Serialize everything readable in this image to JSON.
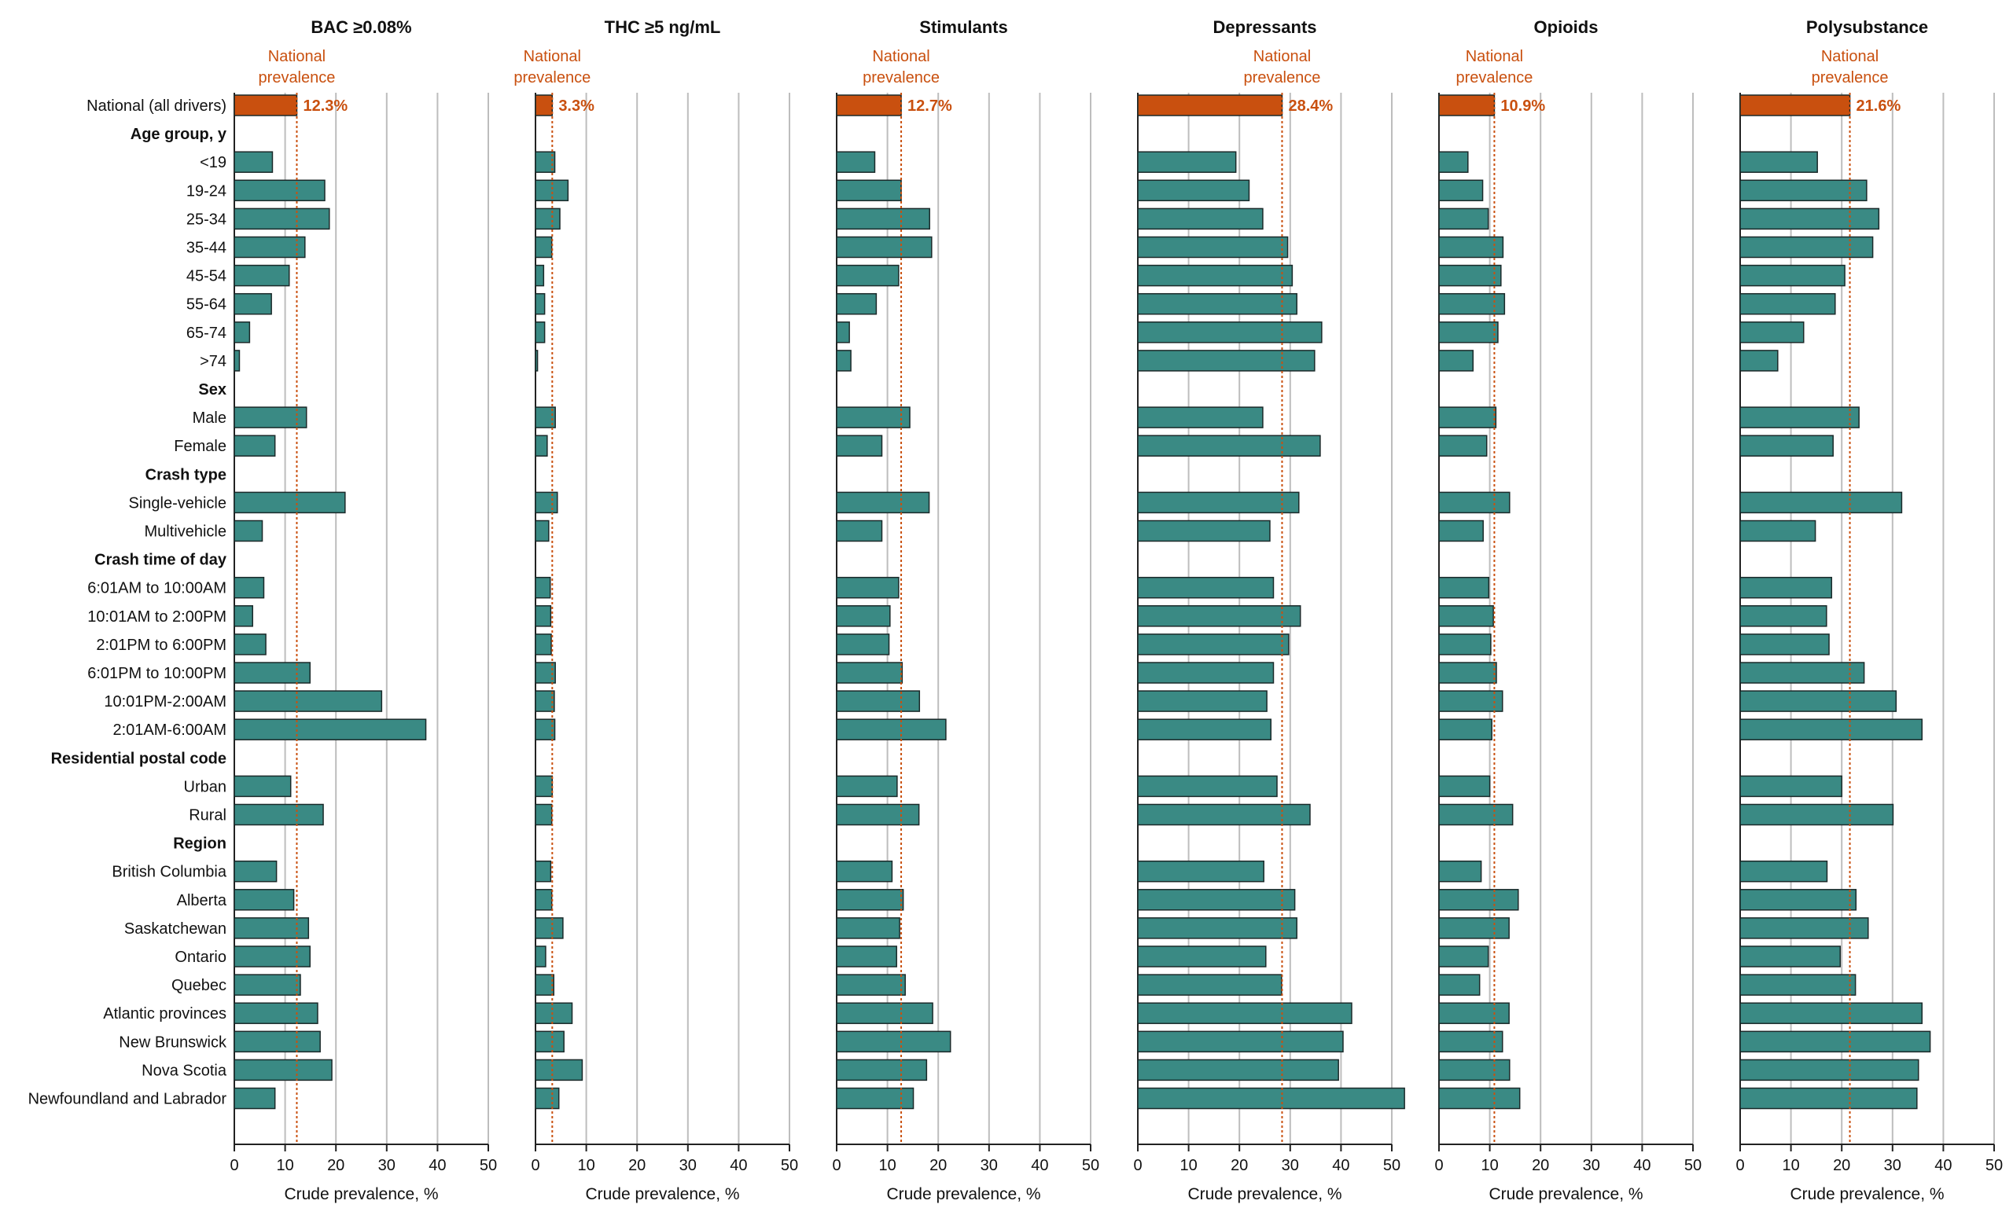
{
  "chart_data": {
    "type": "bar",
    "orientation": "horizontal",
    "xlabel": "Crude prevalence, %",
    "xlim": [
      0,
      50
    ],
    "xticks": [
      0,
      10,
      20,
      30,
      40,
      50
    ],
    "national_line_label": [
      "National",
      "prevalence"
    ],
    "colors": {
      "national_bar": "#c9500f",
      "bar": "#3a8a84",
      "bar_outline": "#1b2a2a",
      "national_text": "#c9500f",
      "grid": "#bdbdbd"
    },
    "rows": [
      {
        "label": "National (all drivers)",
        "kind": "national"
      },
      {
        "label": "Age group, y",
        "kind": "header"
      },
      {
        "label": "<19",
        "kind": "item"
      },
      {
        "label": "19-24",
        "kind": "item"
      },
      {
        "label": "25-34",
        "kind": "item"
      },
      {
        "label": "35-44",
        "kind": "item"
      },
      {
        "label": "45-54",
        "kind": "item"
      },
      {
        "label": "55-64",
        "kind": "item"
      },
      {
        "label": "65-74",
        "kind": "item"
      },
      {
        "label": ">74",
        "kind": "item"
      },
      {
        "label": "Sex",
        "kind": "header"
      },
      {
        "label": "Male",
        "kind": "item"
      },
      {
        "label": "Female",
        "kind": "item"
      },
      {
        "label": "Crash type",
        "kind": "header"
      },
      {
        "label": "Single-vehicle",
        "kind": "item"
      },
      {
        "label": "Multivehicle",
        "kind": "item"
      },
      {
        "label": "Crash time of day",
        "kind": "header"
      },
      {
        "label": "6:01AM to 10:00AM",
        "kind": "item"
      },
      {
        "label": "10:01AM to 2:00PM",
        "kind": "item"
      },
      {
        "label": "2:01PM to 6:00PM",
        "kind": "item"
      },
      {
        "label": "6:01PM to 10:00PM",
        "kind": "item"
      },
      {
        "label": "10:01PM-2:00AM",
        "kind": "item"
      },
      {
        "label": "2:01AM-6:00AM",
        "kind": "item"
      },
      {
        "label": "Residential postal code",
        "kind": "header"
      },
      {
        "label": "Urban",
        "kind": "item"
      },
      {
        "label": "Rural",
        "kind": "item"
      },
      {
        "label": "Region",
        "kind": "header"
      },
      {
        "label": "British Columbia",
        "kind": "item"
      },
      {
        "label": "Alberta",
        "kind": "item"
      },
      {
        "label": "Saskatchewan",
        "kind": "item"
      },
      {
        "label": "Ontario",
        "kind": "item"
      },
      {
        "label": "Quebec",
        "kind": "item"
      },
      {
        "label": "Atlantic provinces",
        "kind": "item"
      },
      {
        "label": "New Brunswick",
        "kind": "item"
      },
      {
        "label": "Nova Scotia",
        "kind": "item"
      },
      {
        "label": "Newfoundland and Labrador",
        "kind": "item"
      }
    ],
    "panels": [
      {
        "title": "BAC ≥0.08%",
        "national": 12.3,
        "national_label": "12.3%",
        "values": [
          12.3,
          null,
          7.5,
          17.8,
          18.7,
          13.9,
          10.8,
          7.3,
          3.0,
          1.0,
          null,
          14.2,
          8.0,
          null,
          21.8,
          5.5,
          null,
          5.8,
          3.6,
          6.2,
          14.9,
          29.0,
          37.7,
          null,
          11.1,
          17.5,
          null,
          8.3,
          11.7,
          14.6,
          14.9,
          13.0,
          16.4,
          16.9,
          19.2,
          8.0
        ]
      },
      {
        "title": "THC ≥5  ng/mL",
        "national": 3.3,
        "national_label": "3.3%",
        "values": [
          3.3,
          null,
          3.8,
          6.4,
          4.8,
          3.2,
          1.6,
          1.8,
          1.8,
          0.4,
          null,
          3.9,
          2.3,
          null,
          4.3,
          2.6,
          null,
          2.9,
          3.0,
          3.1,
          3.9,
          3.7,
          3.8,
          null,
          3.3,
          3.2,
          null,
          3.0,
          3.2,
          5.4,
          2.0,
          3.6,
          7.2,
          5.6,
          9.2,
          4.6
        ]
      },
      {
        "title": "Stimulants",
        "national": 12.7,
        "national_label": "12.7%",
        "values": [
          12.7,
          null,
          7.5,
          12.7,
          18.3,
          18.7,
          12.2,
          7.8,
          2.5,
          2.8,
          null,
          14.4,
          8.9,
          null,
          18.2,
          8.9,
          null,
          12.2,
          10.5,
          10.3,
          12.9,
          16.3,
          21.5,
          null,
          11.9,
          16.2,
          null,
          10.9,
          13.1,
          12.4,
          11.8,
          13.5,
          18.9,
          22.4,
          17.7,
          15.1
        ]
      },
      {
        "title": "Depressants",
        "national": 28.4,
        "national_label": "28.4%",
        "values": [
          28.4,
          null,
          19.3,
          21.9,
          24.6,
          29.5,
          30.4,
          31.3,
          36.2,
          34.8,
          null,
          24.6,
          35.9,
          null,
          31.7,
          26.0,
          null,
          26.7,
          32.0,
          29.7,
          26.7,
          25.4,
          26.2,
          null,
          27.4,
          33.9,
          null,
          24.8,
          30.9,
          31.3,
          25.2,
          28.3,
          42.1,
          40.4,
          39.5,
          52.5
        ]
      },
      {
        "title": "Opioids",
        "national": 10.9,
        "national_label": "10.9%",
        "values": [
          10.9,
          null,
          5.7,
          8.6,
          9.7,
          12.6,
          12.2,
          12.9,
          11.6,
          6.7,
          null,
          11.2,
          9.4,
          null,
          13.9,
          8.7,
          null,
          9.8,
          10.7,
          10.2,
          11.3,
          12.5,
          10.4,
          null,
          10.0,
          14.5,
          null,
          8.3,
          15.6,
          13.8,
          9.7,
          8.0,
          13.8,
          12.5,
          13.9,
          15.9
        ]
      },
      {
        "title": "Polysubstance",
        "national": 21.6,
        "national_label": "21.6%",
        "values": [
          21.6,
          null,
          15.2,
          24.9,
          27.3,
          26.1,
          20.6,
          18.7,
          12.5,
          7.4,
          null,
          23.4,
          18.3,
          null,
          31.8,
          14.8,
          null,
          18.0,
          17.0,
          17.5,
          24.4,
          30.7,
          35.8,
          null,
          20.0,
          30.1,
          null,
          17.1,
          22.8,
          25.2,
          19.7,
          22.7,
          35.8,
          37.4,
          35.1,
          34.8
        ]
      }
    ]
  }
}
